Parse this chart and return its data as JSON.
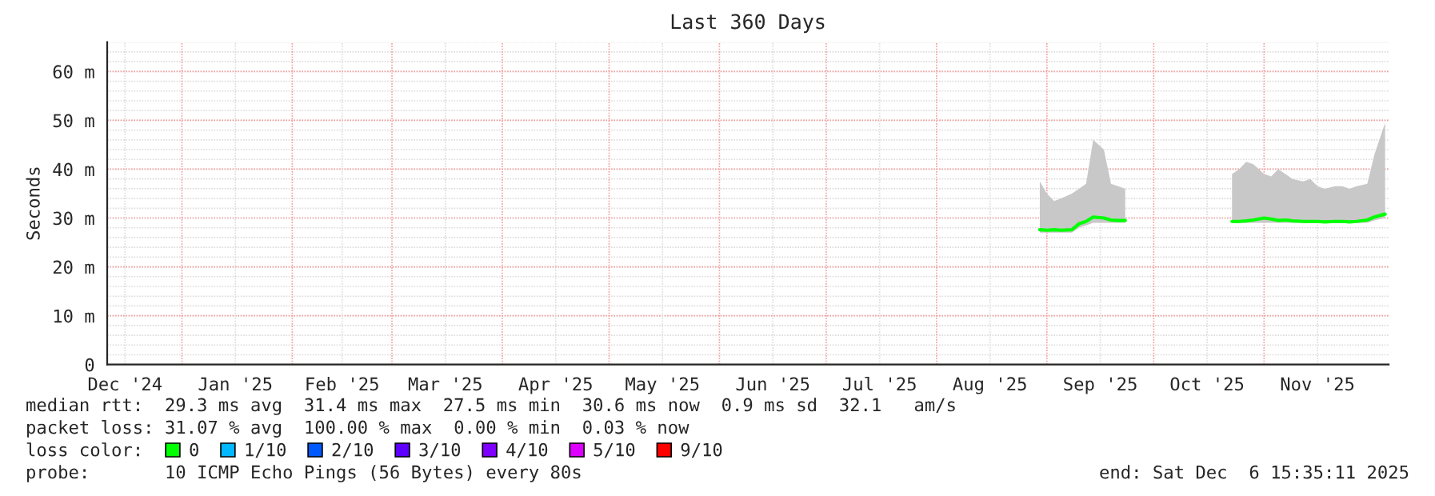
{
  "chart_data": {
    "type": "line",
    "title": "Last 360 Days",
    "ylabel": "Seconds",
    "xlim": [
      "2024-12-11",
      "2025-12-06"
    ],
    "xticks": [
      {
        "value": "2024-12-16",
        "label": "Dec '24"
      },
      {
        "value": "2025-01-01",
        "label": null
      },
      {
        "value": "2025-01-16",
        "label": "Jan '25"
      },
      {
        "value": "2025-02-01",
        "label": null
      },
      {
        "value": "2025-02-15",
        "label": "Feb '25"
      },
      {
        "value": "2025-03-01",
        "label": null
      },
      {
        "value": "2025-03-16",
        "label": "Mar '25"
      },
      {
        "value": "2025-04-01",
        "label": null
      },
      {
        "value": "2025-04-16",
        "label": "Apr '25"
      },
      {
        "value": "2025-05-01",
        "label": null
      },
      {
        "value": "2025-05-16",
        "label": "May '25"
      },
      {
        "value": "2025-06-01",
        "label": null
      },
      {
        "value": "2025-06-16",
        "label": "Jun '25"
      },
      {
        "value": "2025-07-01",
        "label": null
      },
      {
        "value": "2025-07-16",
        "label": "Jul '25"
      },
      {
        "value": "2025-08-01",
        "label": null
      },
      {
        "value": "2025-08-16",
        "label": "Aug '25"
      },
      {
        "value": "2025-09-01",
        "label": null
      },
      {
        "value": "2025-09-16",
        "label": "Sep '25"
      },
      {
        "value": "2025-10-01",
        "label": null
      },
      {
        "value": "2025-10-16",
        "label": "Oct '25"
      },
      {
        "value": "2025-11-01",
        "label": null
      },
      {
        "value": "2025-11-16",
        "label": "Nov '25"
      }
    ],
    "ylim": [
      0,
      66
    ],
    "yticks": [
      0,
      {
        "value": 10,
        "label": "10 m"
      },
      {
        "value": 20,
        "label": "20 m"
      },
      {
        "value": 30,
        "label": "30 m"
      },
      {
        "value": 40,
        "label": "40 m"
      },
      {
        "value": 50,
        "label": "50 m"
      },
      {
        "value": 60,
        "label": "60 m"
      }
    ],
    "grid": true,
    "legend": "bottom",
    "legend_title": "loss color:",
    "series": [
      {
        "name": "0",
        "color": "#00ff00",
        "x": [
          "2025-08-30",
          "2025-09-01",
          "2025-09-03",
          "2025-09-05",
          "2025-09-08",
          "2025-09-10",
          "2025-09-12",
          "2025-09-14",
          "2025-09-17",
          "2025-09-19",
          "2025-09-21",
          "2025-09-23",
          "2025-10-08",
          "2025-10-23",
          "2025-10-25",
          "2025-10-27",
          "2025-10-29",
          "2025-11-01",
          "2025-11-03",
          "2025-11-05",
          "2025-11-07",
          "2025-11-09",
          "2025-11-12",
          "2025-11-14",
          "2025-11-16",
          "2025-11-18",
          "2025-11-21",
          "2025-11-23",
          "2025-11-25",
          "2025-11-27",
          "2025-11-30",
          "2025-12-02",
          "2025-12-05"
        ],
        "values": [
          27.6,
          27.5,
          27.6,
          27.5,
          27.6,
          28.8,
          29.3,
          30.2,
          30.0,
          29.6,
          29.5,
          29.5,
          null,
          29.3,
          29.3,
          29.4,
          29.6,
          30.0,
          29.8,
          29.5,
          29.6,
          29.4,
          29.3,
          29.3,
          29.3,
          29.2,
          29.3,
          29.3,
          29.2,
          29.3,
          29.6,
          30.2,
          30.8
        ],
        "lower": [
          27.0,
          27.0,
          27.0,
          27.0,
          27.0,
          28.0,
          28.5,
          29.0,
          29.0,
          29.0,
          29.0,
          29.0,
          null,
          29.0,
          29.0,
          29.0,
          29.0,
          29.0,
          29.0,
          29.0,
          29.0,
          29.0,
          29.0,
          29.0,
          29.0,
          29.0,
          29.0,
          29.0,
          29.0,
          29.0,
          29.0,
          29.5,
          30.0
        ],
        "upper": [
          37.5,
          35.0,
          33.5,
          34.0,
          35.0,
          36.0,
          37.0,
          46.0,
          44.0,
          37.0,
          36.5,
          36.0,
          null,
          39.0,
          40.0,
          41.5,
          41.0,
          39.0,
          38.5,
          40.0,
          39.0,
          38.0,
          37.5,
          38.0,
          36.5,
          36.0,
          36.5,
          36.5,
          36.0,
          36.5,
          37.0,
          43.0,
          49.5
        ]
      },
      {
        "name": "1/10",
        "color": "#00b8ff"
      },
      {
        "name": "2/10",
        "color": "#0059ff"
      },
      {
        "name": "3/10",
        "color": "#5e00ff"
      },
      {
        "name": "4/10",
        "color": "#7e00ff"
      },
      {
        "name": "5/10",
        "color": "#dd00ff"
      },
      {
        "name": "9/10",
        "color": "#ff0000"
      }
    ],
    "annotations": [
      "median rtt:  29.3 ms avg  31.4 ms max  27.5 ms min  30.6 ms now  0.9 ms sd  32.1   am/s",
      "packet loss: 31.07 % avg  100.00 % max  0.00 % min  0.03 % now",
      "probe:       10 ICMP Echo Pings (56 Bytes) every 80s",
      "end: Sat Dec  6 15:35:11 2025"
    ]
  }
}
